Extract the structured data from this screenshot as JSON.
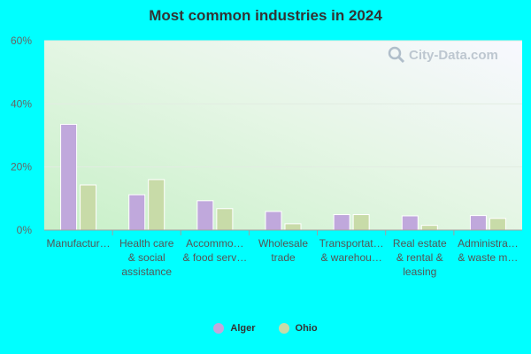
{
  "chart_data": {
    "type": "bar",
    "title": "Most common industries in 2024",
    "categories": [
      [
        "Manufactur…"
      ],
      [
        "Health care",
        "& social",
        "assistance"
      ],
      [
        "Accommo…",
        "& food serv…"
      ],
      [
        "Wholesale",
        "trade"
      ],
      [
        "Transportat…",
        "& warehou…"
      ],
      [
        "Real estate",
        "& rental &",
        "leasing"
      ],
      [
        "Administra…",
        "& waste m…"
      ]
    ],
    "series": [
      {
        "name": "Alger",
        "color": "#c0a8dc",
        "values": [
          33.5,
          11.2,
          9.3,
          5.9,
          4.9,
          4.5,
          4.6
        ]
      },
      {
        "name": "Ohio",
        "color": "#c8dba8",
        "values": [
          14.3,
          16.0,
          6.8,
          2.0,
          4.9,
          1.5,
          3.7
        ]
      }
    ],
    "y_ticks": [
      "0%",
      "20%",
      "40%",
      "60%"
    ],
    "ylim": [
      0,
      60
    ],
    "grid": true,
    "legend_position": "bottom"
  },
  "watermark": {
    "text": "City-Data.com",
    "icon": "search-icon"
  }
}
